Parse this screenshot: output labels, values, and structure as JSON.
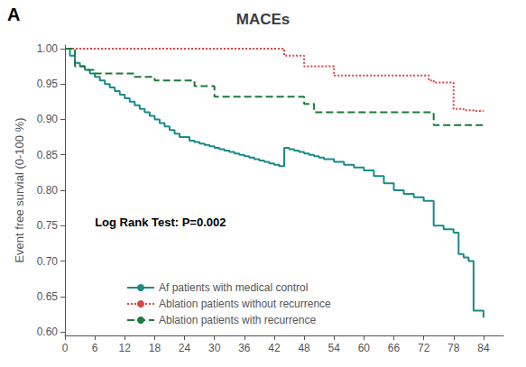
{
  "chart_data": {
    "type": "step",
    "title": "MACEs",
    "ylabel": "Event free survial (0-100 %)",
    "annotations": [
      {
        "text": "A"
      },
      {
        "text": "Log Rank Test: P=0.002",
        "x": 6,
        "y": 0.755
      }
    ],
    "xlim": [
      0,
      88
    ],
    "xticks": [
      0,
      6,
      12,
      18,
      24,
      30,
      36,
      42,
      48,
      54,
      60,
      66,
      72,
      78,
      84
    ],
    "ylim": [
      0.595,
      1.005
    ],
    "yticks": [
      {
        "value": 0.6,
        "label": "0.60"
      },
      {
        "value": 0.65,
        "label": "0.65"
      },
      {
        "value": 0.7,
        "label": "0.70"
      },
      {
        "value": 0.75,
        "label": "0.75"
      },
      {
        "value": 0.8,
        "label": "0.80"
      },
      {
        "value": 0.85,
        "label": "0.85"
      },
      {
        "value": 0.9,
        "label": "0.90"
      },
      {
        "value": 0.95,
        "label": "0.95"
      },
      {
        "value": 1.0,
        "label": "1.00"
      }
    ],
    "grid": false,
    "legend": "lower left",
    "series": [
      {
        "name": "Af patients with medical control",
        "color": "#1a8a8a",
        "line_style": "solid",
        "x": [
          0,
          1,
          2,
          3,
          4,
          5,
          6,
          7,
          8,
          9,
          10,
          11,
          12,
          13,
          14,
          15,
          16,
          17,
          18,
          19,
          20,
          21,
          22,
          23,
          24,
          25,
          26,
          27,
          28,
          29,
          30,
          31,
          32,
          33,
          34,
          35,
          36,
          37,
          38,
          39,
          40,
          41,
          42,
          43,
          44,
          45,
          46,
          47,
          48,
          49,
          50,
          51,
          52,
          54,
          56,
          58,
          60,
          62,
          64,
          66,
          68,
          70,
          72,
          74,
          76,
          78,
          79,
          80,
          81,
          82,
          84
        ],
        "values": [
          1.0,
          0.99,
          0.98,
          0.975,
          0.97,
          0.965,
          0.96,
          0.955,
          0.95,
          0.945,
          0.94,
          0.935,
          0.93,
          0.925,
          0.92,
          0.915,
          0.91,
          0.905,
          0.9,
          0.895,
          0.89,
          0.885,
          0.88,
          0.875,
          0.875,
          0.87,
          0.868,
          0.866,
          0.864,
          0.862,
          0.86,
          0.858,
          0.856,
          0.854,
          0.852,
          0.85,
          0.848,
          0.846,
          0.844,
          0.842,
          0.84,
          0.838,
          0.836,
          0.834,
          0.86,
          0.858,
          0.856,
          0.854,
          0.852,
          0.85,
          0.848,
          0.846,
          0.844,
          0.84,
          0.836,
          0.832,
          0.828,
          0.82,
          0.81,
          0.8,
          0.795,
          0.79,
          0.785,
          0.75,
          0.745,
          0.74,
          0.71,
          0.705,
          0.7,
          0.63,
          0.62
        ]
      },
      {
        "name": "Ablation patients without recurrence",
        "color": "#d44",
        "line_style": "dotted",
        "x": [
          0,
          42,
          44,
          46,
          48,
          50,
          52,
          54,
          56,
          58,
          60,
          62,
          64,
          66,
          72,
          73,
          74,
          75,
          78,
          80,
          82,
          84
        ],
        "values": [
          1.0,
          1.0,
          0.99,
          0.99,
          0.975,
          0.975,
          0.975,
          0.962,
          0.962,
          0.962,
          0.962,
          0.962,
          0.962,
          0.962,
          0.962,
          0.955,
          0.952,
          0.952,
          0.915,
          0.913,
          0.912,
          0.912
        ]
      },
      {
        "name": "Ablation patients with recurrence",
        "color": "#1a7a3a",
        "line_style": "dashed",
        "x": [
          0,
          2,
          4,
          6,
          8,
          10,
          12,
          14,
          16,
          18,
          20,
          22,
          24,
          26,
          28,
          30,
          32,
          34,
          36,
          38,
          40,
          42,
          44,
          46,
          48,
          50,
          52,
          54,
          56,
          58,
          60,
          62,
          64,
          66,
          68,
          70,
          72,
          74,
          76,
          78,
          80,
          82,
          84
        ],
        "values": [
          1.0,
          0.975,
          0.97,
          0.965,
          0.965,
          0.965,
          0.965,
          0.96,
          0.96,
          0.955,
          0.955,
          0.955,
          0.955,
          0.947,
          0.947,
          0.932,
          0.932,
          0.932,
          0.932,
          0.932,
          0.932,
          0.932,
          0.932,
          0.932,
          0.922,
          0.91,
          0.91,
          0.91,
          0.91,
          0.91,
          0.91,
          0.91,
          0.91,
          0.91,
          0.91,
          0.91,
          0.91,
          0.892,
          0.892,
          0.892,
          0.892,
          0.892,
          0.892
        ]
      }
    ]
  }
}
